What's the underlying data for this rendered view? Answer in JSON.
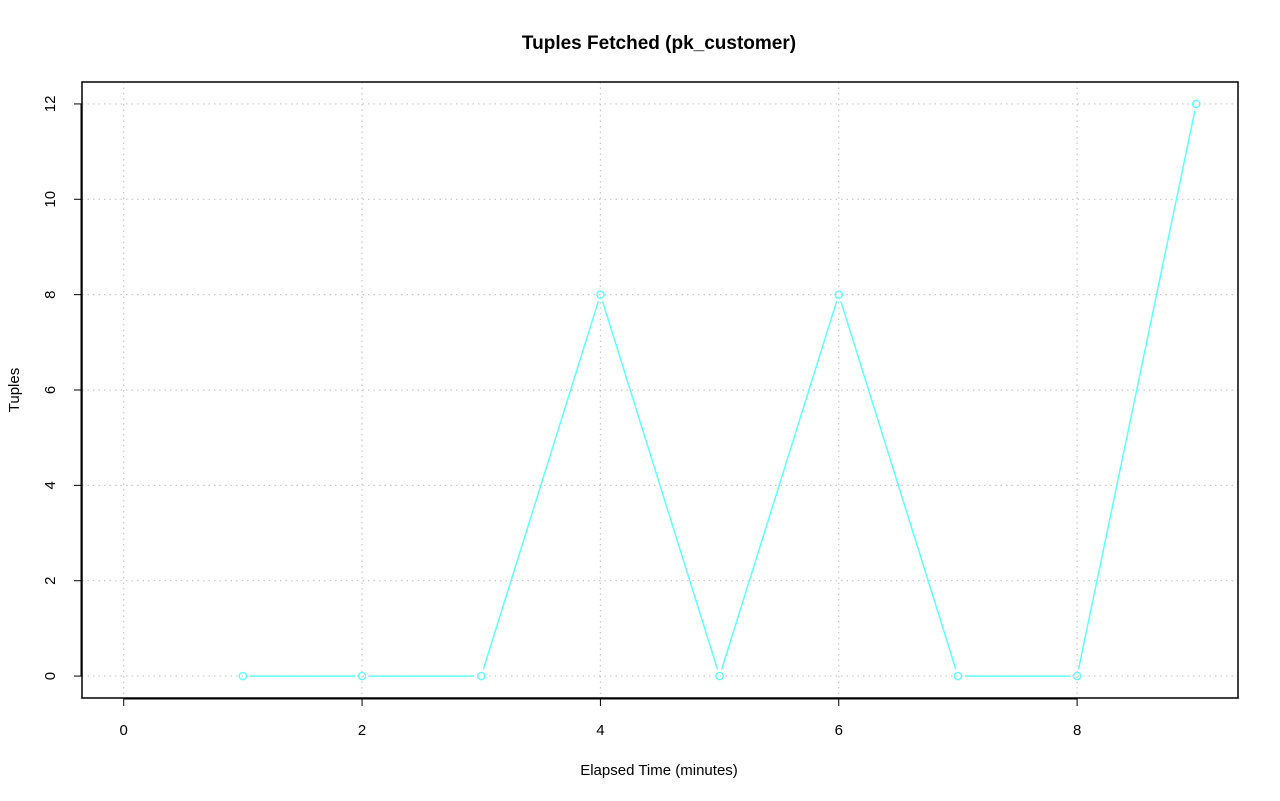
{
  "chart_data": {
    "type": "line",
    "title": "Tuples Fetched (pk_customer)",
    "xlabel": "Elapsed Time (minutes)",
    "ylabel": "Tuples",
    "xlim": [
      -0.35,
      9.35
    ],
    "ylim": [
      -0.46,
      12.46
    ],
    "x_ticks": [
      0,
      2,
      4,
      6,
      8
    ],
    "y_ticks": [
      0,
      2,
      4,
      6,
      8,
      10,
      12
    ],
    "grid": true,
    "series": [
      {
        "color": "#5fffff",
        "marker": "circle",
        "x": [
          1,
          2,
          3,
          4,
          5,
          6,
          7,
          8,
          9
        ],
        "y": [
          0,
          0,
          0,
          8,
          0,
          8,
          0,
          0,
          12
        ]
      }
    ]
  }
}
